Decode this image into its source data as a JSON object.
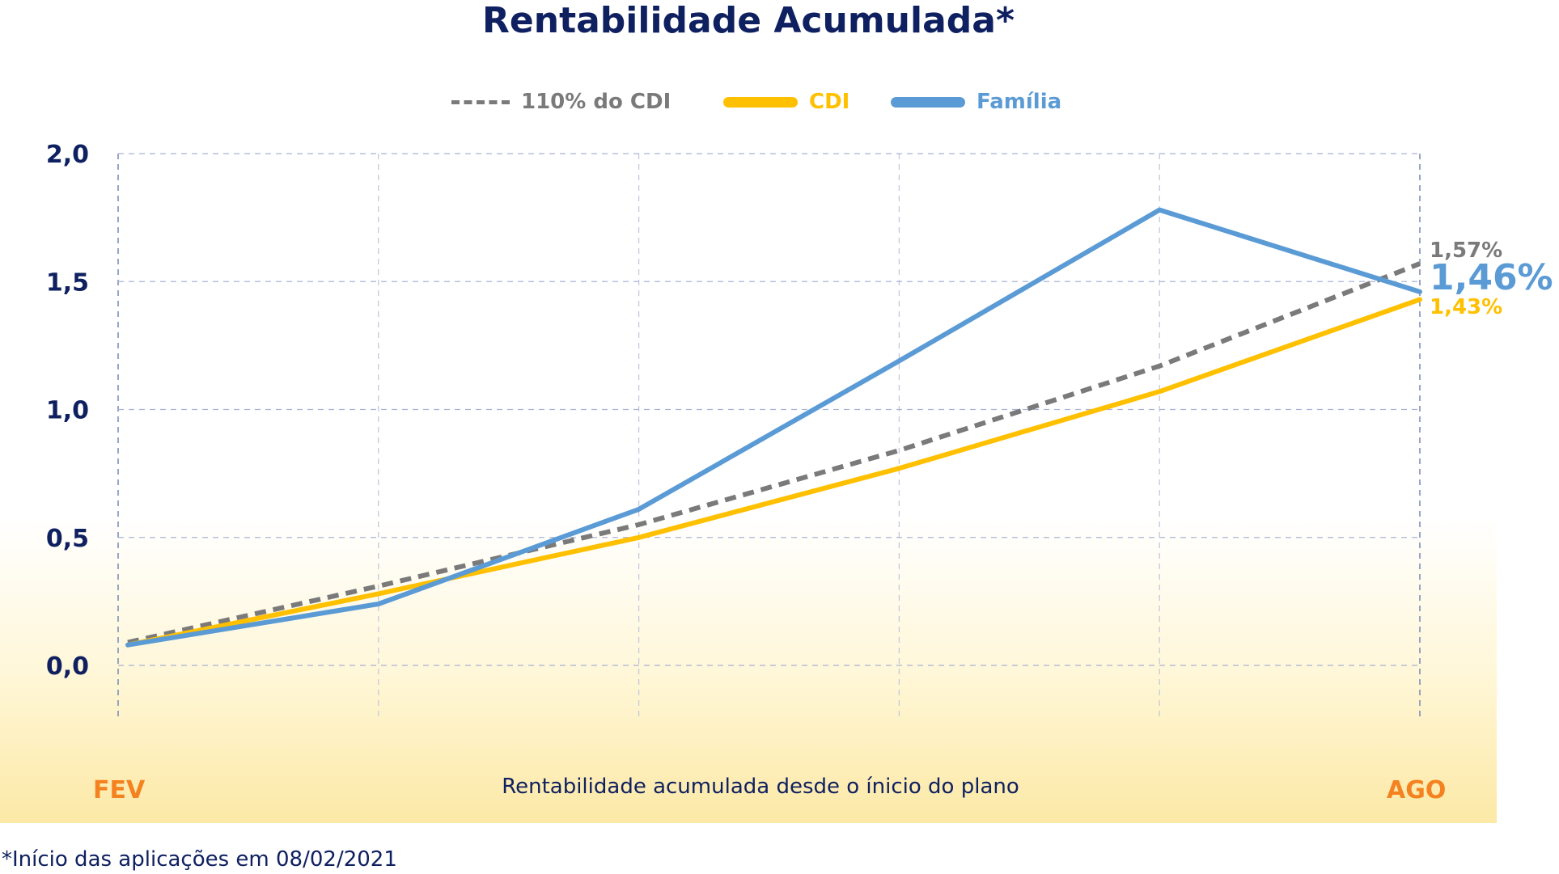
{
  "chart_data": {
    "type": "line",
    "title": "Rentabilidade Acumulada*",
    "xlabel": "Rentabilidade acumulada desde o ínicio do plano",
    "x_start_label": "FEV",
    "x_end_label": "AGO",
    "footnote": "*Início das aplicações em 08/02/2021",
    "ylim": [
      -0.2,
      2.0
    ],
    "yticks": [
      "2,0",
      "1,5",
      "1,0",
      "0,5",
      "0,0"
    ],
    "ytick_values": [
      2.0,
      1.5,
      1.0,
      0.5,
      0.0
    ],
    "grid": true,
    "legend_position": "top",
    "series": [
      {
        "name": "110% do CDI",
        "color": "#7a7a7a",
        "style": "dashed",
        "values": [
          0.09,
          0.31,
          0.55,
          0.84,
          1.17,
          1.57
        ],
        "end_label": "1,57%"
      },
      {
        "name": "CDI",
        "color": "#ffc000",
        "style": "solid",
        "values": [
          0.08,
          0.28,
          0.5,
          0.77,
          1.07,
          1.43
        ],
        "end_label": "1,43%"
      },
      {
        "name": "Família",
        "color": "#5b9bd5",
        "style": "solid",
        "values": [
          0.08,
          0.24,
          0.61,
          1.19,
          1.78,
          1.46
        ],
        "end_label": "1,46%"
      }
    ]
  }
}
